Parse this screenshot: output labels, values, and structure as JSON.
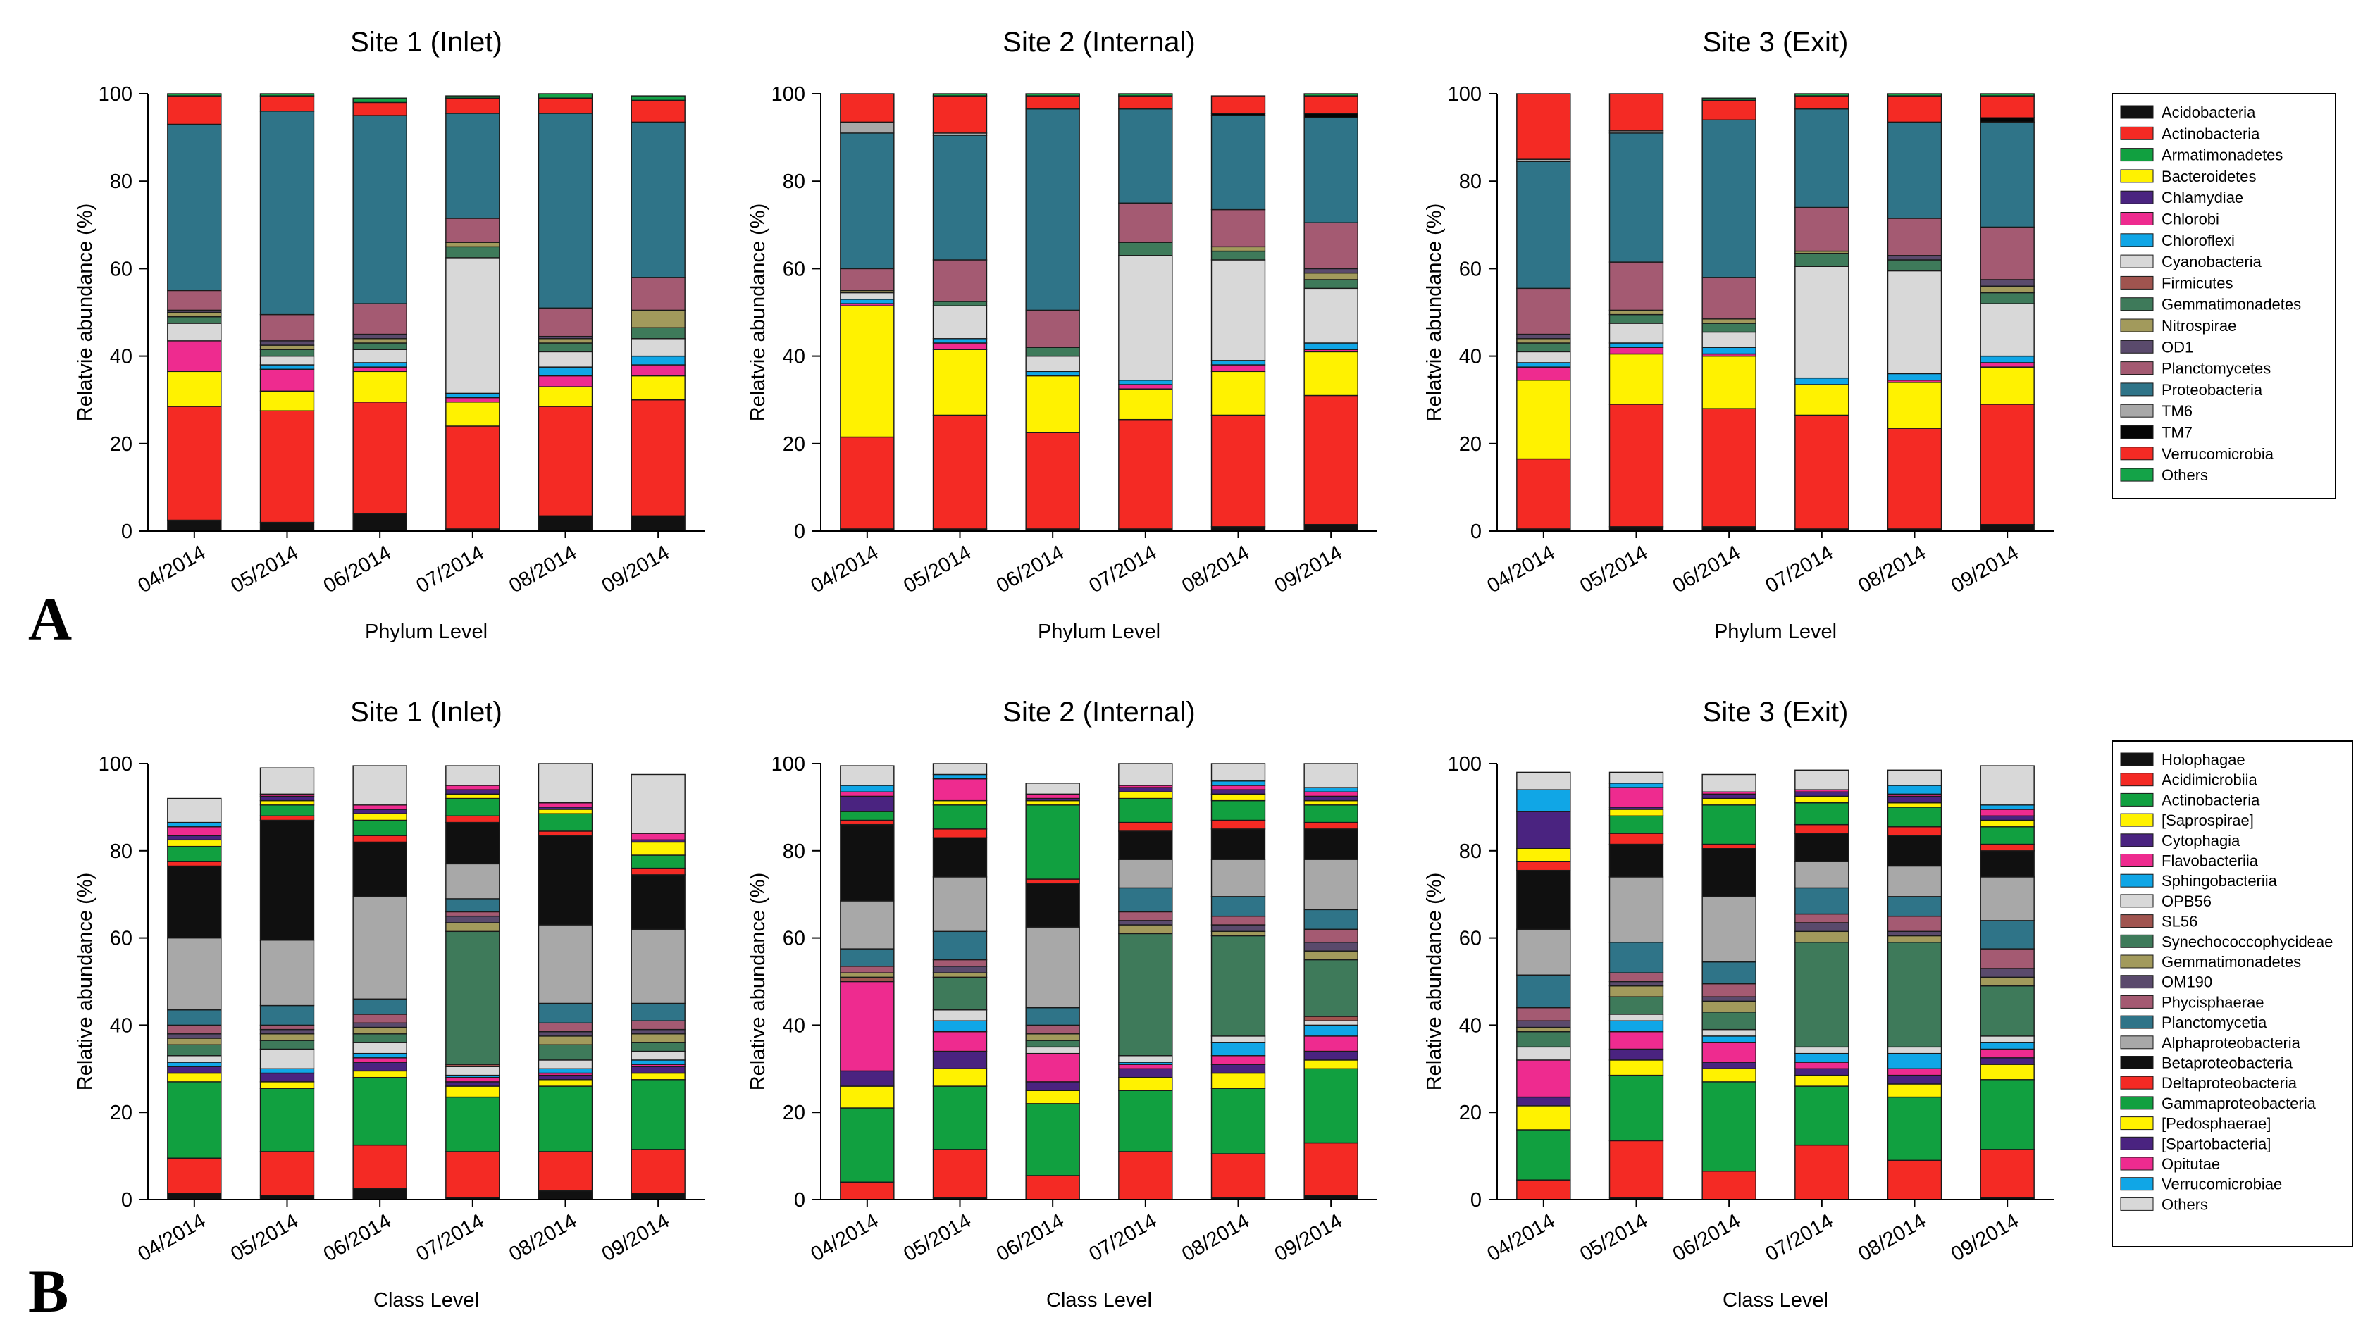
{
  "figure": {
    "panel_labels": [
      "A",
      "B"
    ]
  },
  "legends": {
    "phylum": [
      {
        "name": "Acidobacteria",
        "color": "#111111"
      },
      {
        "name": "Actinobacteria",
        "color": "#f42a24"
      },
      {
        "name": "Armatimonadetes",
        "color": "#11a040"
      },
      {
        "name": "Bacteroidetes",
        "color": "#fff200"
      },
      {
        "name": "Chlamydiae",
        "color": "#4a2380"
      },
      {
        "name": "Chlorobi",
        "color": "#ee2b8f"
      },
      {
        "name": "Chloroflexi",
        "color": "#10a6e6"
      },
      {
        "name": "Cyanobacteria",
        "color": "#d8d8d8"
      },
      {
        "name": "Firmicutes",
        "color": "#a0544f"
      },
      {
        "name": "Gemmatimonadetes",
        "color": "#3e7a5a"
      },
      {
        "name": "Nitrospirae",
        "color": "#a29a5c"
      },
      {
        "name": "OD1",
        "color": "#5a4a6c"
      },
      {
        "name": "Planctomycetes",
        "color": "#a45a72"
      },
      {
        "name": "Proteobacteria",
        "color": "#2f7488"
      },
      {
        "name": "TM6",
        "color": "#a8a8a8"
      },
      {
        "name": "TM7",
        "color": "#050505"
      },
      {
        "name": "Verrucomicrobia",
        "color": "#f42a24"
      },
      {
        "name": "Others",
        "color": "#14a348"
      }
    ],
    "class": [
      {
        "name": "Holophagae",
        "color": "#111111"
      },
      {
        "name": "Acidimicrobiia",
        "color": "#f42a24"
      },
      {
        "name": "Actinobacteria",
        "color": "#11a040"
      },
      {
        "name": "[Saprospirae]",
        "color": "#fff200"
      },
      {
        "name": "Cytophagia",
        "color": "#4a2380"
      },
      {
        "name": "Flavobacteriia",
        "color": "#ee2b8f"
      },
      {
        "name": "Sphingobacteriia",
        "color": "#10a6e6"
      },
      {
        "name": "OPB56",
        "color": "#d8d8d8"
      },
      {
        "name": "SL56",
        "color": "#a0544f"
      },
      {
        "name": "Synechococcophycideae",
        "color": "#3e7a5a"
      },
      {
        "name": "Gemmatimonadetes",
        "color": "#a29a5c"
      },
      {
        "name": "OM190",
        "color": "#5a4a6c"
      },
      {
        "name": "Phycisphaerae",
        "color": "#a45a72"
      },
      {
        "name": "Planctomycetia",
        "color": "#2f7488"
      },
      {
        "name": "Alphaproteobacteria",
        "color": "#a8a8a8"
      },
      {
        "name": "Betaproteobacteria",
        "color": "#101010"
      },
      {
        "name": "Deltaproteobacteria",
        "color": "#f42a24"
      },
      {
        "name": "Gammaproteobacteria",
        "color": "#11a040"
      },
      {
        "name": "[Pedosphaerae]",
        "color": "#fff200"
      },
      {
        "name": "[Spartobacteria]",
        "color": "#4a2380"
      },
      {
        "name": "Opitutae",
        "color": "#ee2b8f"
      },
      {
        "name": "Verrucomicrobiae",
        "color": "#10a6e6"
      },
      {
        "name": "Others",
        "color": "#d8d8d8"
      }
    ]
  },
  "chart_data": [
    {
      "type": "bar",
      "stacked": true,
      "panel": "A",
      "level": "phylum",
      "title": "Site 1 (Inlet)",
      "xlabel": "Phylum Level",
      "ylabel": "Relatvie abundance (%)",
      "ylim": [
        0,
        100
      ],
      "yticks": [
        0,
        20,
        40,
        60,
        80,
        100
      ],
      "categories": [
        "04/2014",
        "05/2014",
        "06/2014",
        "07/2014",
        "08/2014",
        "09/2014"
      ],
      "stacks": [
        [
          2.5,
          26,
          0,
          8,
          0,
          7,
          0,
          4,
          0,
          1.5,
          1,
          0.5,
          4.5,
          38,
          0,
          0,
          6.5,
          0.5
        ],
        [
          2,
          25.5,
          0,
          4.5,
          0,
          5,
          1,
          2,
          0,
          1.5,
          1,
          1,
          6,
          46.5,
          0,
          0,
          3.5,
          0.5
        ],
        [
          4,
          25.5,
          0,
          7,
          0,
          1,
          1,
          3,
          0,
          1.5,
          1,
          1,
          7,
          43,
          0,
          0,
          3,
          1
        ],
        [
          0.5,
          23.5,
          0,
          5.5,
          0,
          1,
          1,
          31,
          0,
          2.5,
          1,
          0,
          5.5,
          24,
          0,
          0,
          3.5,
          0.5
        ],
        [
          3.5,
          25,
          0,
          4.5,
          0,
          2.5,
          2,
          3.5,
          0,
          2,
          1,
          0.5,
          6.5,
          44.5,
          0,
          0,
          3.5,
          1
        ],
        [
          3.5,
          26.5,
          0,
          5.5,
          0,
          2.5,
          2,
          4,
          0,
          2.5,
          4,
          0,
          7.5,
          35.5,
          0,
          0,
          5,
          1
        ]
      ]
    },
    {
      "type": "bar",
      "stacked": true,
      "panel": "A",
      "level": "phylum",
      "title": "Site 2 (Internal)",
      "xlabel": "Phylum Level",
      "ylabel": "Relatvie abundance (%)",
      "ylim": [
        0,
        100
      ],
      "yticks": [
        0,
        20,
        40,
        60,
        80,
        100
      ],
      "categories": [
        "04/2014",
        "05/2014",
        "06/2014",
        "07/2014",
        "08/2014",
        "09/2014"
      ],
      "stacks": [
        [
          0.5,
          21,
          0,
          30,
          0,
          0.5,
          1,
          1.5,
          0,
          0,
          0.5,
          0,
          5,
          31,
          2.5,
          0,
          6.5,
          0
        ],
        [
          0.5,
          26,
          0,
          15,
          0,
          1.5,
          1,
          7.5,
          0,
          1,
          0,
          0,
          9.5,
          28.5,
          0.5,
          0,
          8.5,
          0.5
        ],
        [
          0.5,
          22,
          0,
          13,
          0,
          0,
          1,
          3.5,
          0,
          2,
          0,
          0,
          8.5,
          46,
          0,
          0,
          3,
          0.5
        ],
        [
          0.5,
          25,
          0,
          7,
          0,
          1,
          1,
          28.5,
          0,
          3,
          0,
          0,
          9,
          21.5,
          0,
          0,
          3,
          0.5
        ],
        [
          1,
          25.5,
          0,
          10,
          0,
          1.5,
          1,
          23,
          0,
          2,
          1,
          0,
          8.5,
          21.5,
          0,
          0.5,
          4,
          0
        ],
        [
          1.5,
          29.5,
          0,
          10,
          0,
          0.5,
          1.5,
          12.5,
          0,
          2,
          1.5,
          1,
          10.5,
          24,
          0,
          1,
          4,
          0.5
        ]
      ]
    },
    {
      "type": "bar",
      "stacked": true,
      "panel": "A",
      "level": "phylum",
      "title": "Site 3 (Exit)",
      "xlabel": "Phylum Level",
      "ylabel": "Relatvie abundance (%)",
      "ylim": [
        0,
        100
      ],
      "yticks": [
        0,
        20,
        40,
        60,
        80,
        100
      ],
      "categories": [
        "04/2014",
        "05/2014",
        "06/2014",
        "07/2014",
        "08/2014",
        "09/2014"
      ],
      "stacks": [
        [
          0.5,
          16,
          0,
          18,
          0,
          3,
          1,
          2.5,
          0,
          2,
          1,
          1,
          10.5,
          29,
          0.5,
          0,
          15,
          0
        ],
        [
          1,
          28,
          0,
          11.5,
          0,
          1.5,
          1,
          4.5,
          0,
          2,
          1,
          0,
          11,
          29.5,
          0.5,
          0,
          8.5,
          0
        ],
        [
          1,
          27,
          0,
          12,
          0,
          0.5,
          1.5,
          3.5,
          0,
          2,
          1,
          0,
          9.5,
          36,
          0,
          0,
          4.5,
          0.5
        ],
        [
          0.5,
          26,
          0,
          7,
          0,
          0,
          1.5,
          25.5,
          0,
          3,
          0.5,
          0,
          10,
          22.5,
          0,
          0,
          3,
          0.5
        ],
        [
          0.5,
          23,
          0,
          10.5,
          0,
          0.5,
          1.5,
          23.5,
          0,
          2.5,
          0,
          1,
          8.5,
          22,
          0,
          0,
          6,
          0.5
        ],
        [
          1.5,
          27.5,
          0,
          8.5,
          0,
          1,
          1.5,
          12,
          0,
          2.5,
          1.5,
          1.5,
          12,
          24,
          0,
          1,
          5,
          0.5
        ]
      ]
    },
    {
      "type": "bar",
      "stacked": true,
      "panel": "B",
      "level": "class",
      "title": "Site 1 (Inlet)",
      "xlabel": "Class Level",
      "ylabel": "Relative abundance (%)",
      "ylim": [
        0,
        100
      ],
      "yticks": [
        0,
        20,
        40,
        60,
        80,
        100
      ],
      "categories": [
        "04/2014",
        "05/2014",
        "06/2014",
        "07/2014",
        "08/2014",
        "09/2014"
      ],
      "stacks": [
        [
          1.5,
          8,
          17.5,
          2,
          1.5,
          0,
          1,
          1.5,
          0,
          2.5,
          1.5,
          1,
          2,
          3.5,
          16.5,
          16.5,
          1,
          3.5,
          1.5,
          1,
          2,
          1,
          5.5
        ],
        [
          1,
          10,
          14.5,
          1.5,
          2,
          0,
          1,
          4.5,
          0,
          2,
          1.5,
          1,
          1,
          4.5,
          15,
          27.5,
          1,
          2.5,
          1,
          1,
          0.5,
          0,
          6
        ],
        [
          2.5,
          10,
          15.5,
          1.5,
          2,
          1,
          1,
          2.5,
          0,
          2,
          1.5,
          1,
          2,
          3.5,
          23.5,
          12.5,
          1.5,
          3.5,
          1.5,
          1,
          1,
          0,
          9
        ],
        [
          0.5,
          10.5,
          12.5,
          2.5,
          1,
          1,
          0.5,
          2,
          0.5,
          30.5,
          2,
          1.5,
          1,
          3,
          8,
          9.5,
          1.5,
          4,
          1,
          1,
          1,
          0,
          4.5
        ],
        [
          2,
          9,
          15,
          1.5,
          1,
          0.5,
          1,
          2,
          0,
          3.5,
          2,
          1,
          2,
          4.5,
          18,
          20.5,
          1,
          4,
          1,
          0.5,
          1,
          0,
          9
        ],
        [
          1.5,
          10,
          16,
          1.5,
          1.5,
          0.5,
          1,
          2,
          0,
          2,
          2,
          1,
          2,
          4,
          17,
          12.5,
          1.5,
          3,
          3,
          0.5,
          1.5,
          0,
          13.5
        ]
      ]
    },
    {
      "type": "bar",
      "stacked": true,
      "panel": "B",
      "level": "class",
      "title": "Site 2 (Internal)",
      "xlabel": "Class Level",
      "ylabel": "Relative abundance (%)",
      "ylim": [
        0,
        100
      ],
      "yticks": [
        0,
        20,
        40,
        60,
        80,
        100
      ],
      "categories": [
        "04/2014",
        "05/2014",
        "06/2014",
        "07/2014",
        "08/2014",
        "09/2014"
      ],
      "stacks": [
        [
          0,
          4,
          17,
          5,
          3.5,
          20.5,
          0,
          0,
          1,
          0,
          1,
          0,
          1.5,
          4,
          11,
          17.5,
          1,
          2,
          0,
          3.5,
          1,
          1.5,
          4.5
        ],
        [
          0.5,
          11,
          14.5,
          4,
          4,
          4.5,
          2.5,
          2.5,
          0,
          7.5,
          1,
          1.5,
          1.5,
          6.5,
          12.5,
          9,
          2,
          5.5,
          1,
          0,
          5,
          1,
          3
        ],
        [
          0,
          5.5,
          16.5,
          3,
          2,
          6.5,
          0,
          1.5,
          0,
          1.5,
          1.5,
          0,
          2,
          4,
          18.5,
          10,
          1,
          17,
          1,
          0.5,
          1,
          0,
          2.5
        ],
        [
          0,
          11,
          14,
          3,
          2,
          1,
          0.5,
          1.5,
          0,
          28,
          2,
          1,
          2,
          5.5,
          6.5,
          6.5,
          2,
          5.5,
          1.5,
          1,
          0.5,
          0,
          5
        ],
        [
          0.5,
          10,
          15,
          3.5,
          2,
          2,
          3,
          1.5,
          0,
          23,
          1,
          1.5,
          2,
          4.5,
          8.5,
          7,
          2,
          4.5,
          1.5,
          1,
          1,
          1,
          4
        ],
        [
          1,
          12,
          17,
          2,
          2,
          3.5,
          2.5,
          1,
          1,
          13,
          2,
          2,
          3,
          4.5,
          11.5,
          7,
          1.5,
          4,
          1,
          1,
          1,
          1,
          6
        ]
      ]
    },
    {
      "type": "bar",
      "stacked": true,
      "panel": "B",
      "level": "class",
      "title": "Site 3 (Exit)",
      "xlabel": "Class Level",
      "ylabel": "Relative abundance (%)",
      "ylim": [
        0,
        100
      ],
      "yticks": [
        0,
        20,
        40,
        60,
        80,
        100
      ],
      "categories": [
        "04/2014",
        "05/2014",
        "06/2014",
        "07/2014",
        "08/2014",
        "09/2014"
      ],
      "stacks": [
        [
          0,
          4.5,
          11.5,
          5.5,
          2,
          8.5,
          0,
          3,
          0,
          3.5,
          1,
          1.5,
          3,
          7.5,
          10.5,
          13.5,
          2,
          0,
          3,
          8.5,
          0,
          5,
          4
        ],
        [
          0.5,
          13,
          15,
          3.5,
          2.5,
          4,
          2.5,
          1.5,
          0,
          4,
          2.5,
          1,
          2,
          7,
          15,
          7.5,
          2.5,
          4,
          1.5,
          0.5,
          4.5,
          1,
          2.5
        ],
        [
          0,
          6.5,
          20.5,
          3,
          1.5,
          4.5,
          1.5,
          1.5,
          0,
          4,
          2.5,
          1,
          3,
          5,
          15,
          11,
          1,
          9,
          1.5,
          1,
          0.5,
          0,
          4
        ],
        [
          0,
          12.5,
          13.5,
          2.5,
          1.5,
          1.5,
          2,
          1.5,
          0,
          24,
          2.5,
          2,
          2,
          6,
          6,
          6.5,
          2,
          5,
          1.5,
          1,
          0.5,
          0,
          4.5
        ],
        [
          0,
          9,
          14.5,
          3,
          2,
          1.5,
          3.5,
          1.5,
          0,
          24,
          1.5,
          1,
          3.5,
          4.5,
          7,
          7,
          2,
          4.5,
          1,
          1.5,
          0.5,
          2,
          3.5
        ],
        [
          0.5,
          11,
          16,
          3.5,
          1.5,
          2,
          1.5,
          1.5,
          0,
          11.5,
          2,
          2,
          4.5,
          6.5,
          10,
          6,
          1.5,
          4,
          1.5,
          1,
          1.5,
          1,
          9
        ]
      ]
    }
  ]
}
